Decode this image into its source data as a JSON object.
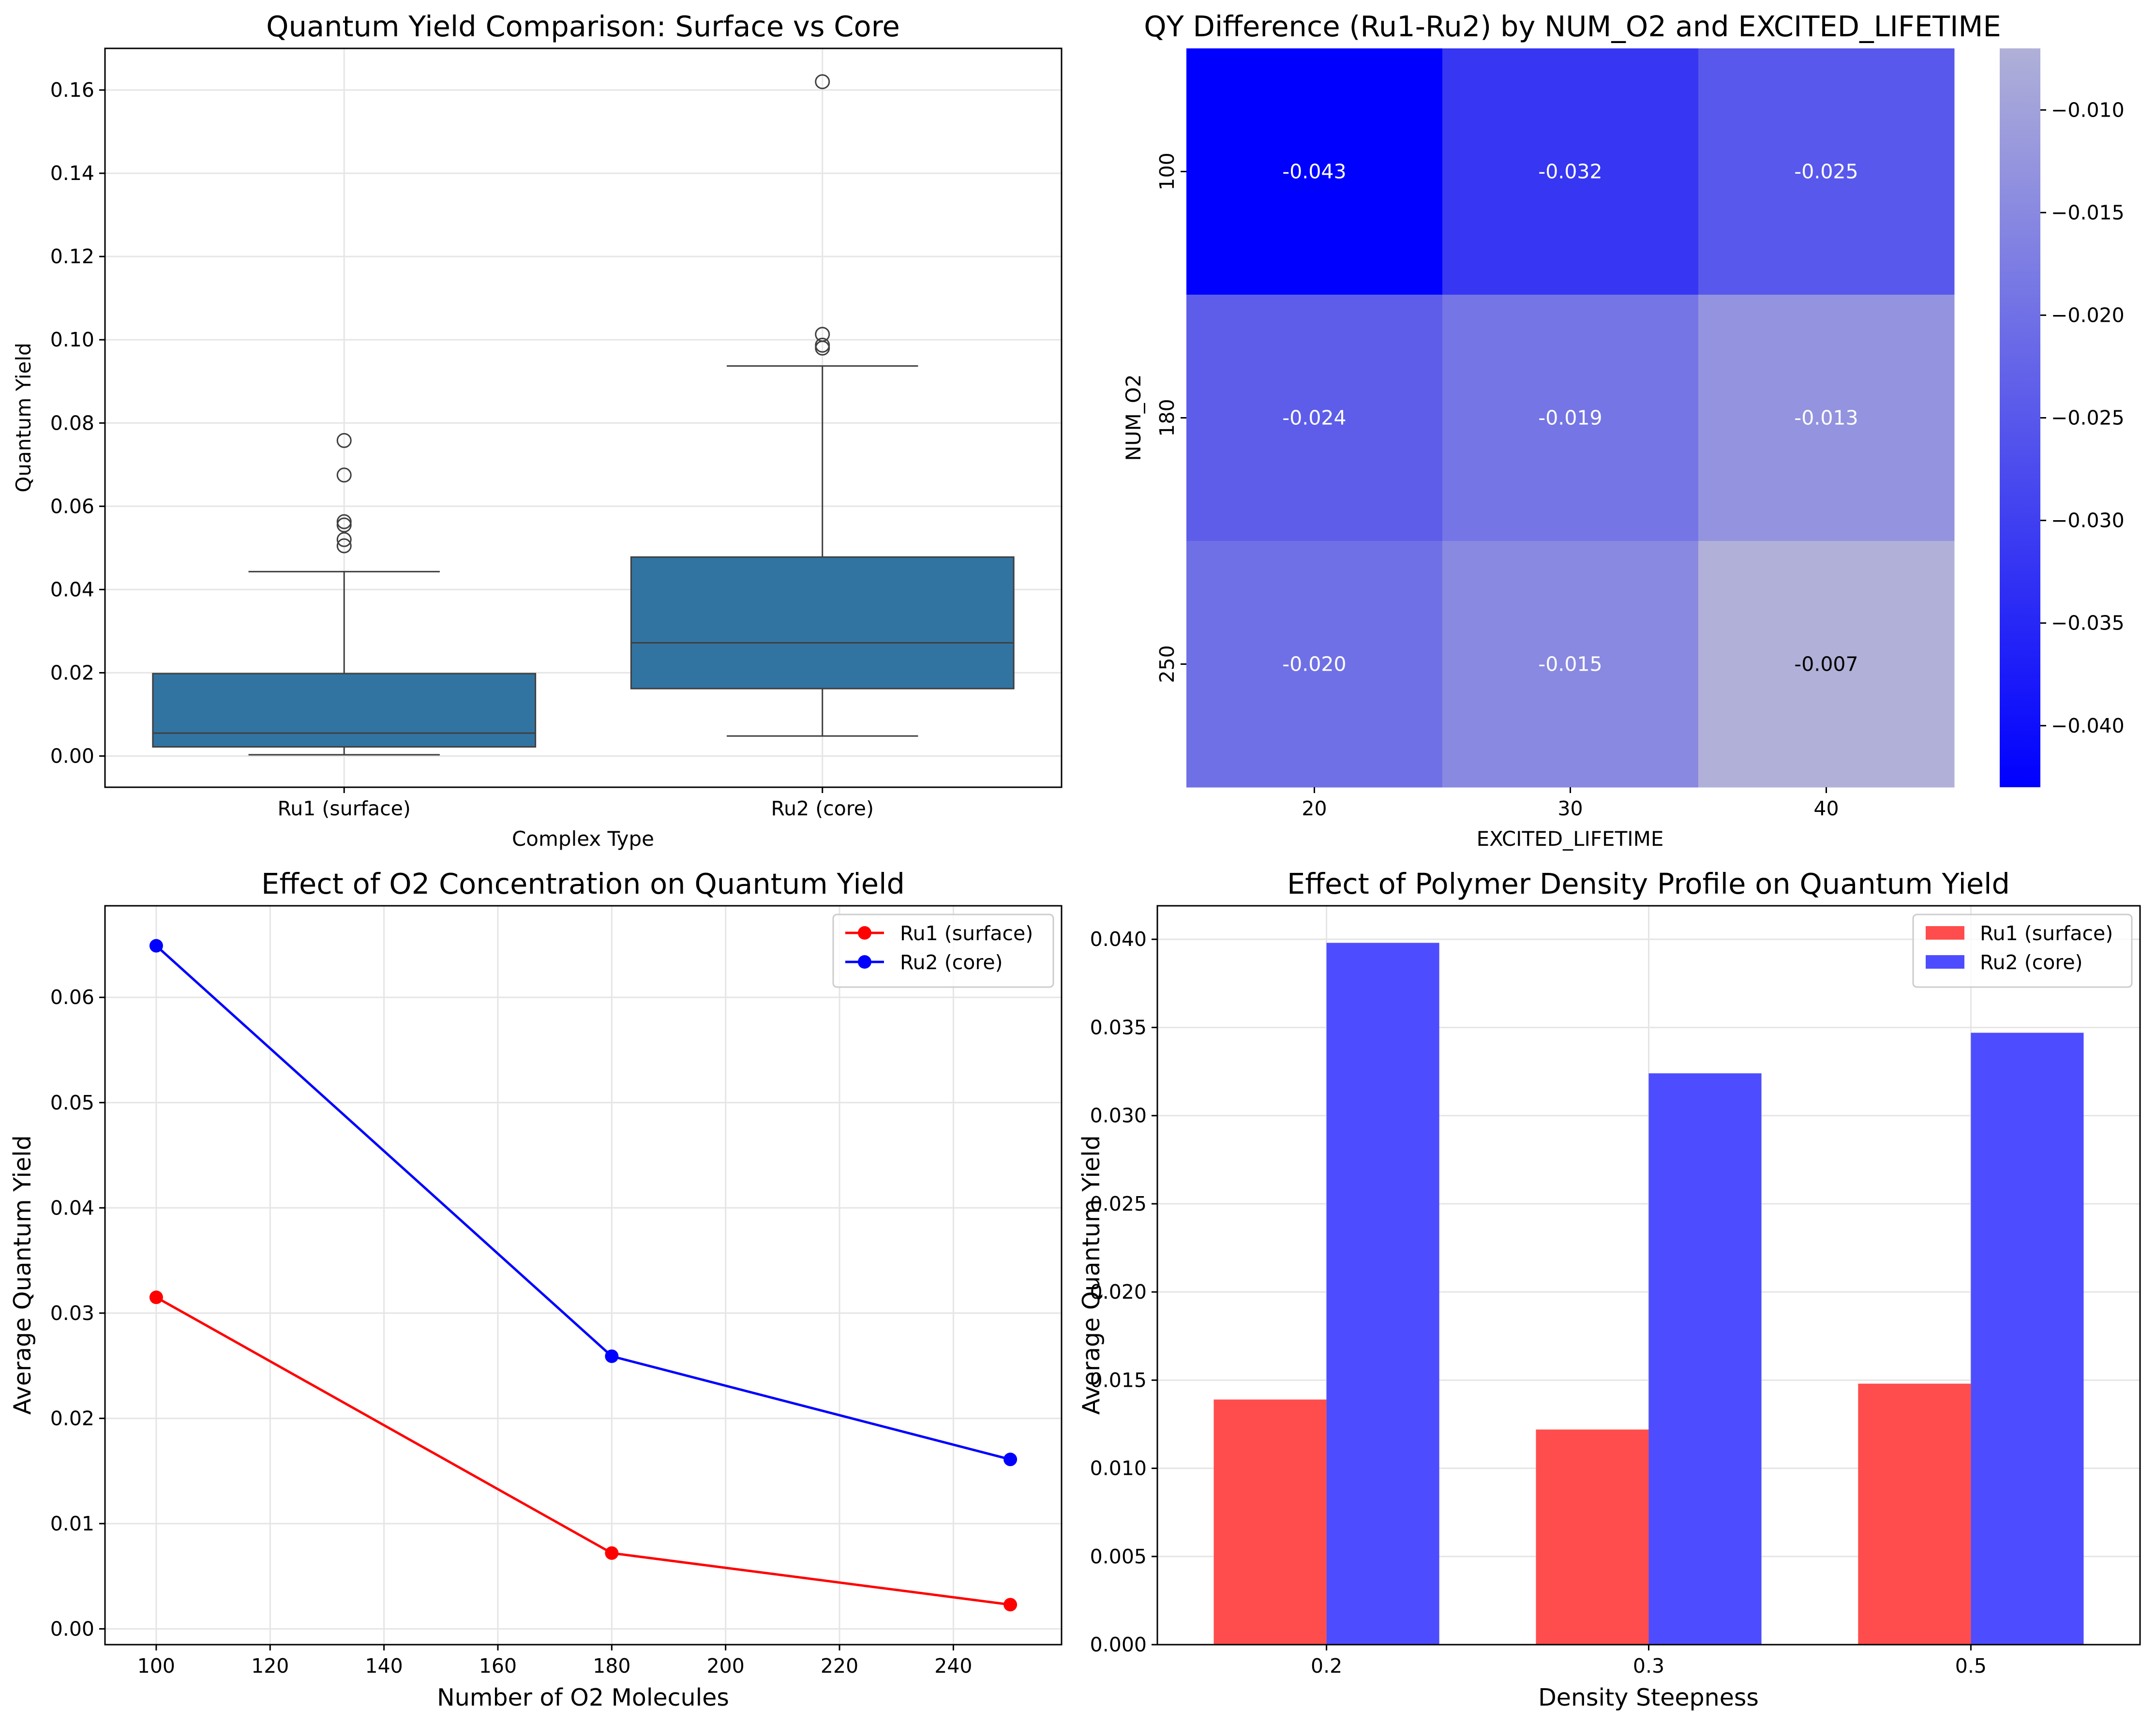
{
  "chart_data": [
    {
      "type": "box",
      "title": "Quantum Yield Comparison: Surface vs Core",
      "xlabel": "Complex Type",
      "ylabel": "Quantum Yield",
      "ylim": [
        -0.0075,
        0.17
      ],
      "yticks": [
        0.0,
        0.02,
        0.04,
        0.06,
        0.08,
        0.1,
        0.12,
        0.14,
        0.16
      ],
      "ytick_labels": [
        "0.00",
        "0.02",
        "0.04",
        "0.06",
        "0.08",
        "0.10",
        "0.12",
        "0.14",
        "0.16"
      ],
      "grid": true,
      "color": "#3274a1",
      "categories": [
        "Ru1 (surface)",
        "Ru2 (core)"
      ],
      "boxes": [
        {
          "whisker_low": 0.0003,
          "q1": 0.0022,
          "median": 0.0055,
          "q3": 0.0198,
          "whisker_high": 0.0443,
          "outliers": [
            0.0505,
            0.052,
            0.0555,
            0.0563,
            0.0675,
            0.0758
          ]
        },
        {
          "whisker_low": 0.0048,
          "q1": 0.0162,
          "median": 0.0272,
          "q3": 0.0478,
          "whisker_high": 0.0937,
          "outliers": [
            0.098,
            0.0987,
            0.1013,
            0.162
          ]
        }
      ]
    },
    {
      "type": "heatmap",
      "title": "QY Difference (Ru1-Ru2) by NUM_O2 and EXCITED_LIFETIME",
      "xlabel": "EXCITED_LIFETIME",
      "ylabel": "NUM_O2",
      "x_categories": [
        "20",
        "30",
        "40"
      ],
      "y_categories": [
        "100",
        "180",
        "250"
      ],
      "values": [
        [
          -0.043,
          -0.032,
          -0.025
        ],
        [
          -0.024,
          -0.019,
          -0.013
        ],
        [
          -0.02,
          -0.015,
          -0.007
        ]
      ],
      "labels": [
        [
          "-0.043",
          "-0.032",
          "-0.025"
        ],
        [
          "-0.024",
          "-0.019",
          "-0.013"
        ],
        [
          "-0.020",
          "-0.015",
          "-0.007"
        ]
      ],
      "colorbar": {
        "range": [
          -0.043,
          -0.007
        ],
        "ticks": [
          -0.04,
          -0.035,
          -0.03,
          -0.025,
          -0.02,
          -0.015,
          -0.01
        ],
        "tick_labels": [
          "−0.040",
          "−0.035",
          "−0.030",
          "−0.025",
          "−0.020",
          "−0.015",
          "−0.010"
        ],
        "low_color": "#0000ff",
        "high_color": "#b0b0d8"
      }
    },
    {
      "type": "line",
      "title": "Effect of O2 Concentration on Quantum Yield",
      "xlabel": "Number of O2 Molecules",
      "ylabel": "Average Quantum Yield",
      "x": [
        100,
        180,
        250
      ],
      "xlim": [
        91,
        259
      ],
      "ylim": [
        -0.0015,
        0.0687
      ],
      "xticks": [
        100,
        120,
        140,
        160,
        180,
        200,
        220,
        240
      ],
      "xtick_labels": [
        "100",
        "120",
        "140",
        "160",
        "180",
        "200",
        "220",
        "240"
      ],
      "yticks": [
        0.0,
        0.01,
        0.02,
        0.03,
        0.04,
        0.05,
        0.06
      ],
      "ytick_labels": [
        "0.00",
        "0.01",
        "0.02",
        "0.03",
        "0.04",
        "0.05",
        "0.06"
      ],
      "grid": true,
      "legend": "top-right",
      "series": [
        {
          "name": "Ru1 (surface)",
          "color": "#ff0000",
          "values": [
            0.0315,
            0.0072,
            0.0023
          ]
        },
        {
          "name": "Ru2 (core)",
          "color": "#0000ff",
          "values": [
            0.0649,
            0.0259,
            0.0161
          ]
        }
      ]
    },
    {
      "type": "bar",
      "title": "Effect of Polymer Density Profile on Quantum Yield",
      "xlabel": "Density Steepness",
      "ylabel": "Average Quantum Yield",
      "categories": [
        "0.2",
        "0.3",
        "0.5"
      ],
      "ylim": [
        0,
        0.0419
      ],
      "yticks": [
        0.0,
        0.005,
        0.01,
        0.015,
        0.02,
        0.025,
        0.03,
        0.035,
        0.04
      ],
      "ytick_labels": [
        "0.000",
        "0.005",
        "0.010",
        "0.015",
        "0.020",
        "0.025",
        "0.030",
        "0.035",
        "0.040"
      ],
      "grid": true,
      "legend": "top-right",
      "series": [
        {
          "name": "Ru1 (surface)",
          "color": "#ff4d4d",
          "values": [
            0.0139,
            0.0122,
            0.0148
          ]
        },
        {
          "name": "Ru2 (core)",
          "color": "#4d4dff",
          "values": [
            0.0398,
            0.0324,
            0.0347
          ]
        }
      ]
    }
  ]
}
